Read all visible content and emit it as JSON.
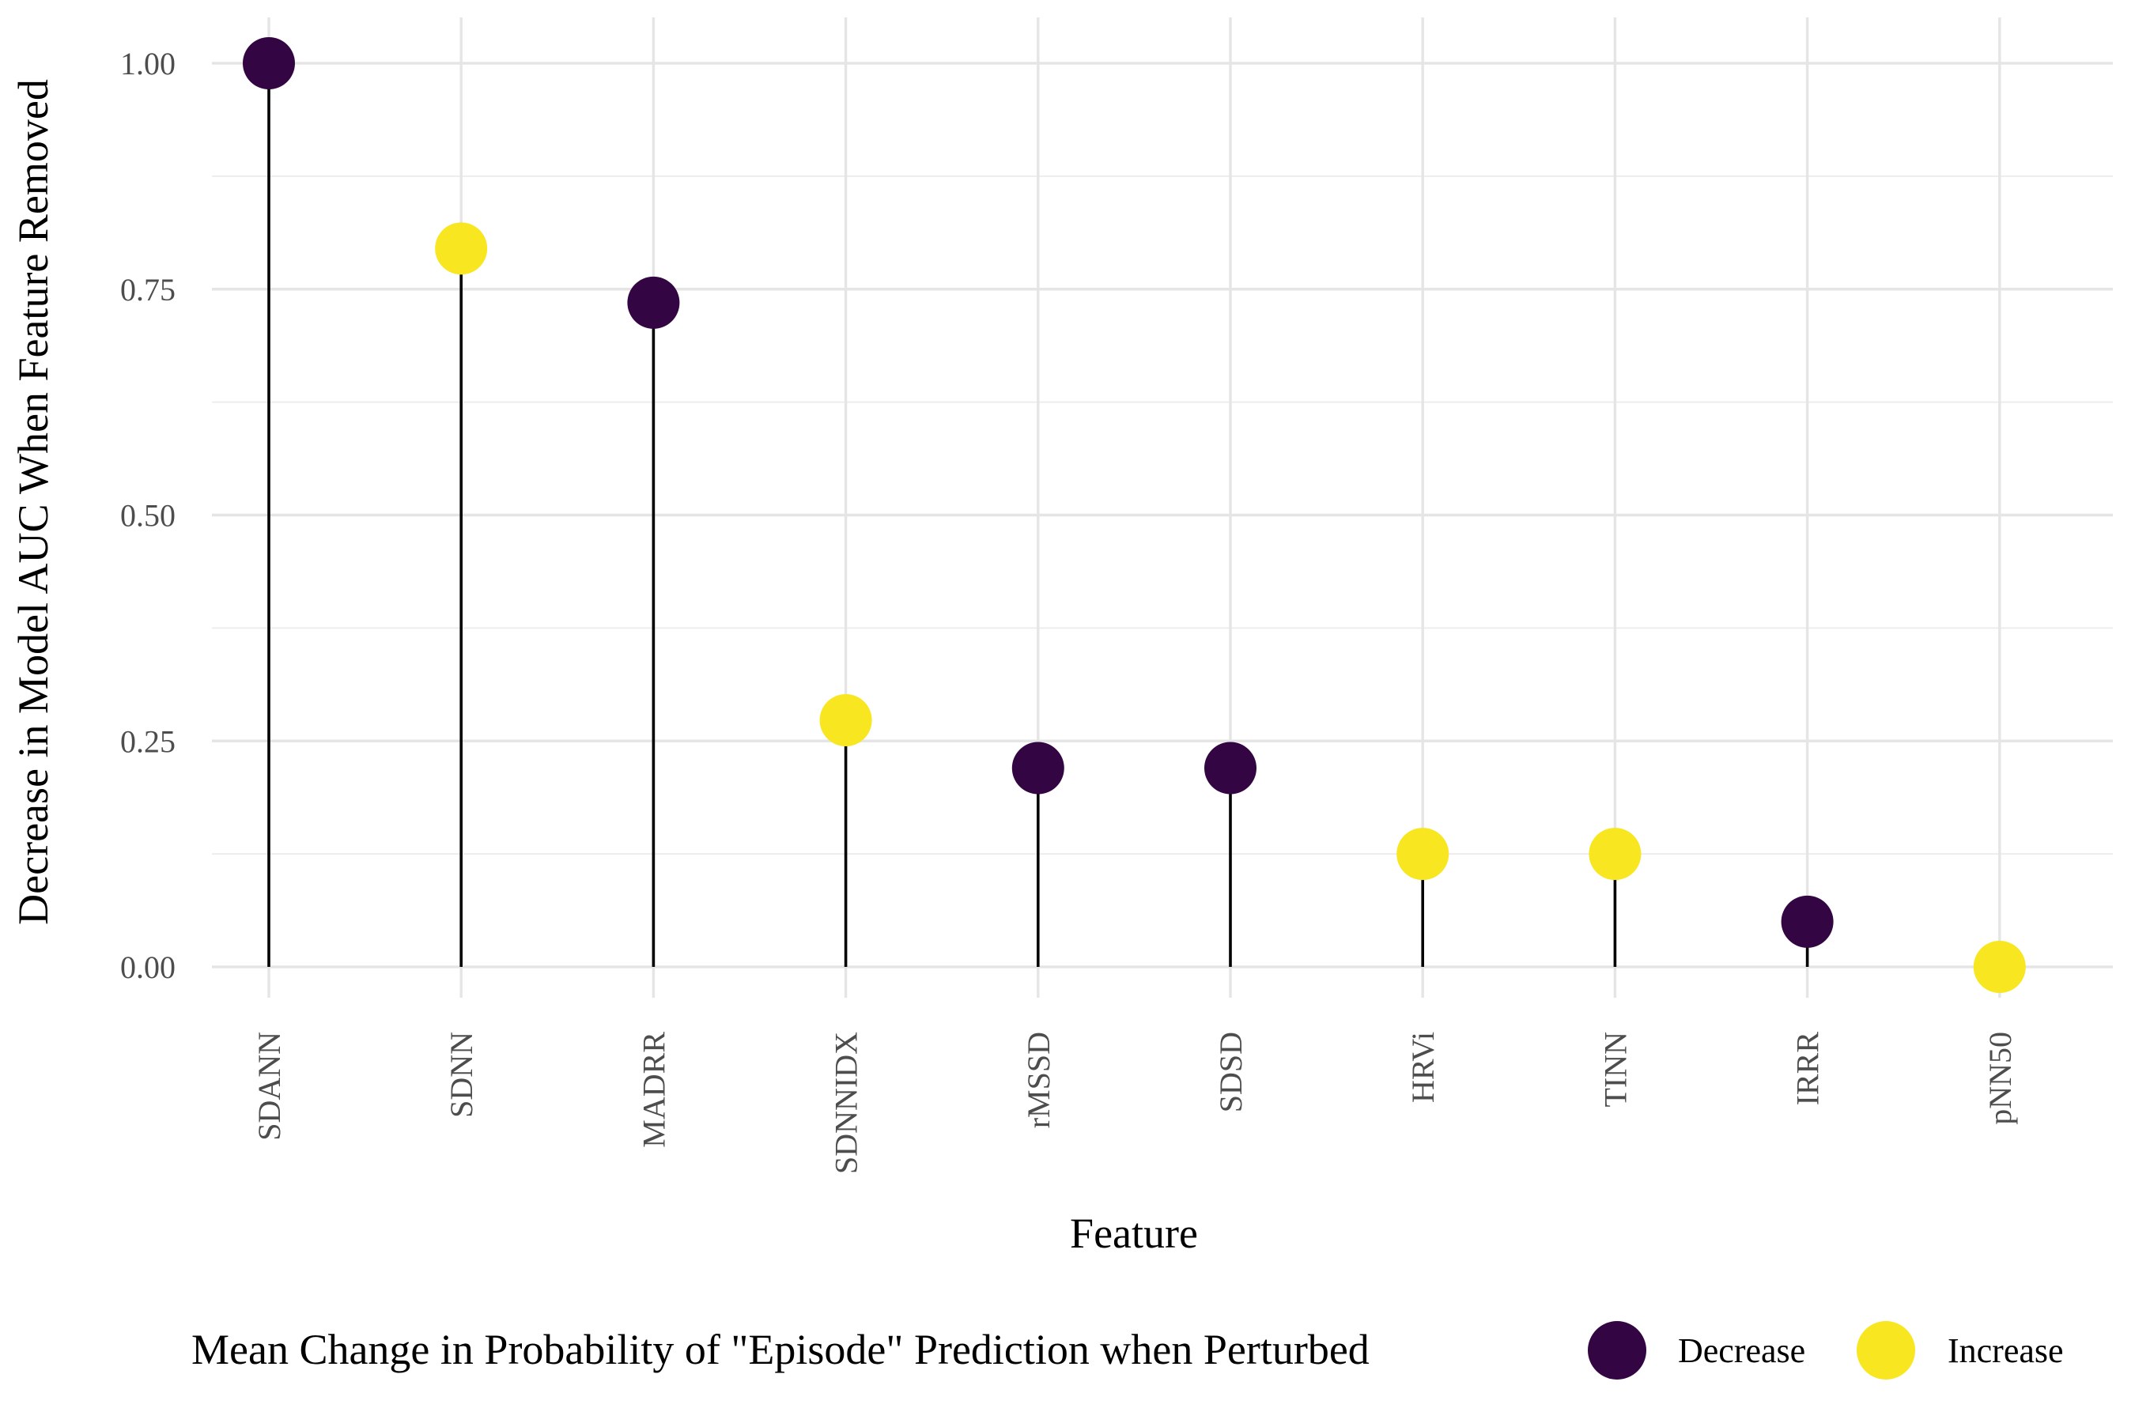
{
  "chart_data": {
    "type": "lollipop",
    "xlabel": "Feature",
    "ylabel": "Decrease in Model AUC When Feature Removed",
    "categories": [
      "SDANN",
      "SDNN",
      "MADRR",
      "SDNNIDX",
      "rMSSD",
      "SDSD",
      "HRVi",
      "TINN",
      "IRRR",
      "pNN50"
    ],
    "values": [
      1.0,
      0.795,
      0.735,
      0.273,
      0.22,
      0.22,
      0.125,
      0.125,
      0.05,
      0.0
    ],
    "groups": [
      "Decrease",
      "Increase",
      "Decrease",
      "Increase",
      "Decrease",
      "Decrease",
      "Increase",
      "Increase",
      "Decrease",
      "Increase"
    ],
    "ylim": [
      -0.05,
      1.05
    ],
    "yticks": [
      0.0,
      0.25,
      0.5,
      0.75,
      1.0
    ],
    "ytick_labels": [
      "0.00",
      "0.25",
      "0.50",
      "0.75",
      "1.00"
    ],
    "grid": true,
    "legend": {
      "title": "Mean Change in Probability of \"Episode\" Prediction when Perturbed",
      "position": "bottom",
      "entries": [
        {
          "label": "Decrease",
          "color": "#440154"
        },
        {
          "label": "Increase",
          "color": "#FDE725"
        }
      ]
    },
    "colors": {
      "Decrease": "#330543",
      "Increase": "#F8E621"
    }
  }
}
